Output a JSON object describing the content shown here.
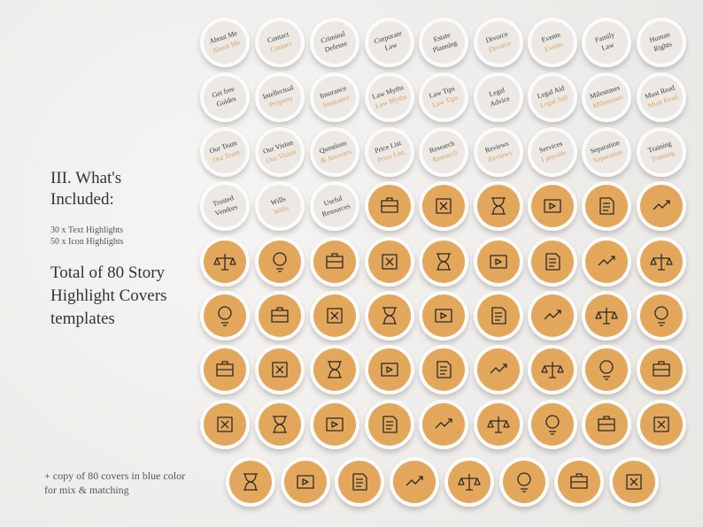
{
  "info": {
    "heading": "III. What's Included:",
    "counts": [
      "30 x Text Highlights",
      "50 x Icon Highlights"
    ],
    "total": "Total of 80 Story Highlight Covers templates",
    "note": "+ copy of 80 covers in blue color for mix & matching"
  },
  "text_covers": [
    {
      "dark": [
        "About Me"
      ],
      "tan": [
        "About Me"
      ]
    },
    {
      "dark": [
        "Contact"
      ],
      "tan": [
        "Contact"
      ]
    },
    {
      "dark": [
        "Criminal",
        "Defense"
      ]
    },
    {
      "dark": [
        "Corporate",
        "Law"
      ]
    },
    {
      "dark": [
        "Estate",
        "Planning"
      ]
    },
    {
      "dark": [
        "Divorce"
      ],
      "tan": [
        "Divorce"
      ]
    },
    {
      "dark": [
        "Events"
      ],
      "tan": [
        "Events"
      ]
    },
    {
      "dark": [
        "Family",
        "Law"
      ]
    },
    {
      "dark": [
        "Human",
        "Rights"
      ]
    },
    {
      "dark": [
        "Get free",
        "Guides"
      ]
    },
    {
      "dark": [
        "Intellectual"
      ],
      "tan": [
        "Property"
      ]
    },
    {
      "dark": [
        "Insurance"
      ],
      "tan": [
        "Insurance"
      ]
    },
    {
      "dark": [
        "Law Myths"
      ],
      "tan": [
        "Law Myths"
      ]
    },
    {
      "dark": [
        "Law Tips"
      ],
      "tan": [
        "Law Tips"
      ]
    },
    {
      "dark": [
        "Legal",
        "Advice"
      ]
    },
    {
      "dark": [
        "Legal Aid"
      ],
      "tan": [
        "Legal Aid"
      ]
    },
    {
      "dark": [
        "Milestones"
      ],
      "tan": [
        "Milestones"
      ]
    },
    {
      "dark": [
        "Must Read"
      ],
      "tan": [
        "Must Read"
      ]
    },
    {
      "dark": [
        "Our Team"
      ],
      "tan": [
        "Our Team"
      ]
    },
    {
      "dark": [
        "Our Vision"
      ],
      "tan": [
        "Our Vision"
      ]
    },
    {
      "dark": [
        "Questions"
      ],
      "tan": [
        "& Answers"
      ]
    },
    {
      "dark": [
        "Price List"
      ],
      "tan": [
        "Price List"
      ]
    },
    {
      "dark": [
        "Research"
      ],
      "tan": [
        "Research"
      ]
    },
    {
      "dark": [
        "Reviews"
      ],
      "tan": [
        "Reviews"
      ]
    },
    {
      "dark": [
        "Services"
      ],
      "tan": [
        "I provide"
      ]
    },
    {
      "dark": [
        "Separation"
      ],
      "tan": [
        "Separation"
      ]
    },
    {
      "dark": [
        "Training"
      ],
      "tan": [
        "Training"
      ]
    },
    {
      "dark": [
        "Trusted",
        "Vendors"
      ]
    },
    {
      "dark": [
        "Wills"
      ],
      "tan": [
        "Wills"
      ]
    },
    {
      "dark": [
        "Useful",
        "Resources"
      ]
    }
  ]
}
